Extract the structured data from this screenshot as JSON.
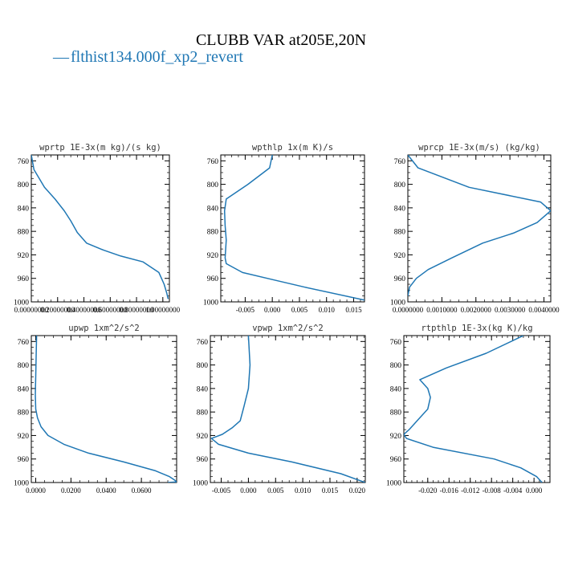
{
  "figure": {
    "title": "CLUBB VAR at205E,20N",
    "legend_label": "flthist134.000f_xp2_revert",
    "legend_glyph": "—",
    "line_color": "#1f77b4"
  },
  "chart_data": [
    {
      "type": "line",
      "title": "wprtp  1E-3x(m kg)/(s kg)",
      "xlim": [
        0,
        1.05
      ],
      "ylim": [
        1000,
        750
      ],
      "xticks": [
        0,
        0.2,
        0.4,
        0.6,
        0.8,
        1.0
      ],
      "xtick_labels": [
        "0.00000000",
        "0.20000000",
        "0.40000000",
        "0.60000000",
        "0.80000000",
        "1.00000000"
      ],
      "yticks": [
        760,
        800,
        840,
        880,
        920,
        960,
        1000
      ],
      "ytick_labels": [
        "760",
        "800",
        "840",
        "880",
        "920",
        "960",
        "1000"
      ],
      "series": [
        {
          "x": [
            0.0,
            0.02,
            0.1,
            0.18,
            0.25,
            0.3,
            0.35,
            0.42,
            0.55,
            0.68,
            0.85,
            0.97,
            1.01,
            1.03,
            1.04
          ],
          "y": [
            750,
            775,
            805,
            825,
            845,
            862,
            882,
            900,
            912,
            922,
            932,
            950,
            970,
            985,
            995
          ]
        }
      ]
    },
    {
      "type": "line",
      "title": "wpthlp  1x(m K)/s",
      "xlim": [
        -0.0095,
        0.017
      ],
      "ylim": [
        1000,
        750
      ],
      "xticks": [
        -0.005,
        0.0,
        0.005,
        0.01,
        0.015
      ],
      "xtick_labels": [
        "-0.005",
        "0.000",
        "0.005",
        "0.010",
        "0.015"
      ],
      "yticks": [
        760,
        800,
        840,
        880,
        920,
        960,
        1000
      ],
      "ytick_labels": [
        "760",
        "800",
        "840",
        "880",
        "920",
        "960",
        "1000"
      ],
      "series": [
        {
          "x": [
            0.0,
            -0.0005,
            -0.0045,
            -0.0085,
            -0.0088,
            -0.0087,
            -0.0085,
            -0.0087,
            -0.0085,
            -0.0055,
            0.0,
            0.006,
            0.017
          ],
          "y": [
            750,
            772,
            800,
            825,
            845,
            870,
            895,
            925,
            935,
            950,
            962,
            975,
            997
          ]
        }
      ]
    },
    {
      "type": "line",
      "title": "wprcp  1E-3x(m/s) (kg/kg)",
      "xlim": [
        0,
        0.0042
      ],
      "ylim": [
        1000,
        750
      ],
      "xticks": [
        0,
        0.001,
        0.002,
        0.003,
        0.004
      ],
      "xtick_labels": [
        "0.0000000",
        "0.0010000",
        "0.0020000",
        "0.0030000",
        "0.0040000"
      ],
      "yticks": [
        760,
        800,
        840,
        880,
        920,
        960,
        1000
      ],
      "ytick_labels": [
        "760",
        "800",
        "840",
        "880",
        "920",
        "960",
        "1000"
      ],
      "series": [
        {
          "x": [
            0.0,
            0.0003,
            0.0018,
            0.0039,
            0.0042,
            0.0038,
            0.0031,
            0.0022,
            0.0013,
            0.0006,
            0.00025,
            5e-05,
            0.0
          ],
          "y": [
            750,
            772,
            805,
            830,
            845,
            865,
            883,
            900,
            925,
            945,
            960,
            975,
            990
          ]
        }
      ]
    },
    {
      "type": "line",
      "title": "upwp  1xm^2/s^2",
      "xlim": [
        -0.0025,
        0.08
      ],
      "ylim": [
        1000,
        750
      ],
      "xticks": [
        0.0,
        0.02,
        0.04,
        0.06
      ],
      "xtick_labels": [
        "0.0000",
        "0.0200",
        "0.0400",
        "0.0600"
      ],
      "yticks": [
        760,
        800,
        840,
        880,
        920,
        960,
        1000
      ],
      "ytick_labels": [
        "760",
        "800",
        "840",
        "880",
        "920",
        "960",
        "1000"
      ],
      "series": [
        {
          "x": [
            0.0005,
            0.0003,
            0.0,
            -0.0002,
            0.0,
            0.001,
            0.003,
            0.007,
            0.016,
            0.03,
            0.05,
            0.068,
            0.076,
            0.079,
            0.08,
            0.075
          ],
          "y": [
            750,
            780,
            820,
            850,
            875,
            890,
            905,
            920,
            935,
            950,
            965,
            980,
            990,
            996,
            999,
            1000
          ]
        }
      ]
    },
    {
      "type": "line",
      "title": "vpwp  1xm^2/s^2",
      "xlim": [
        -0.007,
        0.0215
      ],
      "ylim": [
        1000,
        750
      ],
      "xticks": [
        -0.005,
        0.0,
        0.005,
        0.01,
        0.015,
        0.02
      ],
      "xtick_labels": [
        "-0.005",
        "0.000",
        "0.005",
        "0.010",
        "0.015",
        "0.020"
      ],
      "yticks": [
        760,
        800,
        840,
        880,
        920,
        960,
        1000
      ],
      "ytick_labels": [
        "760",
        "800",
        "840",
        "880",
        "920",
        "960",
        "1000"
      ],
      "series": [
        {
          "x": [
            0.0,
            0.0003,
            0.0,
            -0.0008,
            -0.0015,
            -0.003,
            -0.0048,
            -0.0068,
            -0.0055,
            0.0,
            0.008,
            0.017,
            0.0215
          ],
          "y": [
            750,
            800,
            840,
            870,
            895,
            907,
            918,
            925,
            935,
            950,
            965,
            985,
            1000
          ]
        }
      ]
    },
    {
      "type": "line",
      "title": "rtpthlp  1E-3x(kg K)/kg",
      "xlim": [
        -0.0245,
        0.003
      ],
      "ylim": [
        1000,
        750
      ],
      "xticks": [
        -0.02,
        -0.016,
        -0.012,
        -0.008,
        -0.004,
        0.0
      ],
      "xtick_labels": [
        "-0.020",
        "-0.016",
        "-0.012",
        "-0.008",
        "-0.004",
        "0.000"
      ],
      "yticks": [
        760,
        800,
        840,
        880,
        920,
        960,
        1000
      ],
      "ytick_labels": [
        "760",
        "800",
        "840",
        "880",
        "920",
        "960",
        "1000"
      ],
      "series": [
        {
          "x": [
            -0.002,
            -0.009,
            -0.0165,
            -0.0215,
            -0.02,
            -0.0195,
            -0.02,
            -0.022,
            -0.0235,
            -0.0245,
            -0.024,
            -0.019,
            -0.0075,
            -0.0025,
            0.0005,
            0.0015
          ],
          "y": [
            750,
            780,
            805,
            825,
            840,
            855,
            875,
            895,
            910,
            918,
            925,
            940,
            960,
            975,
            990,
            1000
          ]
        }
      ]
    }
  ]
}
